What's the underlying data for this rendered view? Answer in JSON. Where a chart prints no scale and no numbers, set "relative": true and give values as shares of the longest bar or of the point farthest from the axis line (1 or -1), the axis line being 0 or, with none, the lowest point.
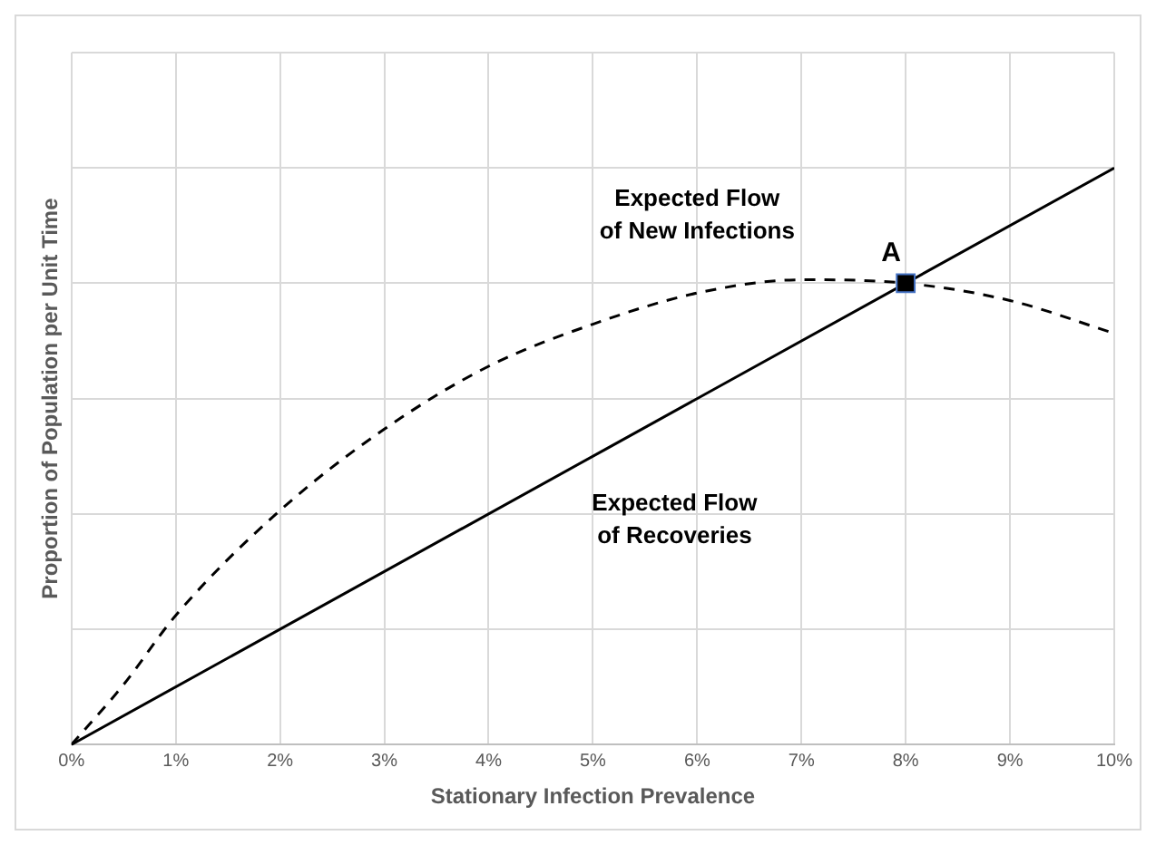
{
  "chart_data": {
    "type": "line",
    "xlabel": "Stationary Infection Prevalence",
    "ylabel": "Proportion of Population per Unit Time",
    "relative": true,
    "grid": true,
    "legend": false,
    "marker": "none",
    "xlim": [
      0,
      10
    ],
    "xticks": [
      {
        "value": 0,
        "label": "0%"
      },
      {
        "value": 1,
        "label": "1%"
      },
      {
        "value": 2,
        "label": "2%"
      },
      {
        "value": 3,
        "label": "3%"
      },
      {
        "value": 4,
        "label": "4%"
      },
      {
        "value": 5,
        "label": "5%"
      },
      {
        "value": 6,
        "label": "6%"
      },
      {
        "value": 7,
        "label": "7%"
      },
      {
        "value": 8,
        "label": "8%"
      },
      {
        "value": 9,
        "label": "9%"
      },
      {
        "value": 10,
        "label": "10%"
      }
    ],
    "tick_labels": "x",
    "series": [
      {
        "name": "Expected Flow of New Infections",
        "color": "#000000",
        "line_style": "dashed",
        "x": [
          0,
          0.5,
          1,
          2,
          3,
          4,
          5,
          6,
          7,
          8,
          9,
          10
        ],
        "values": [
          0,
          0.104,
          0.224,
          0.406,
          0.547,
          0.656,
          0.729,
          0.783,
          0.806,
          0.8,
          0.77,
          0.713
        ]
      },
      {
        "name": "Expected Flow of Recoveries",
        "color": "#000000",
        "line_style": "solid",
        "x": [
          0,
          10
        ],
        "values": [
          0,
          1
        ]
      },
      {
        "name": "A",
        "type": "scatter",
        "marker": "square",
        "color": "#000000",
        "x": [
          8
        ],
        "values": [
          0.8
        ]
      }
    ]
  }
}
